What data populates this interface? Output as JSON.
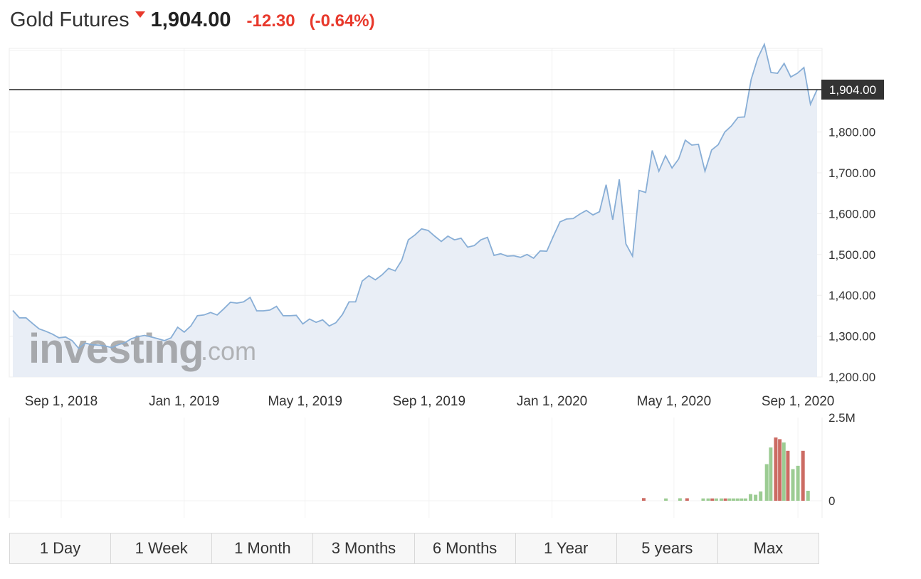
{
  "header": {
    "title": "Gold Futures",
    "price": "1,904.00",
    "change": "-12.30",
    "change_pct": "(-0.64%)",
    "direction_icon": "down-triangle-icon"
  },
  "watermark": {
    "brand": "investing",
    "suffix": ".com"
  },
  "ranges": [
    "1 Day",
    "1 Week",
    "1 Month",
    "3 Months",
    "6 Months",
    "1 Year",
    "5 years",
    "Max"
  ],
  "colors": {
    "line": "#88aed6",
    "area": "#e9eef6",
    "down": "#e8392c",
    "vol_up": "#9ccc93",
    "vol_down": "#cc6b63",
    "last_price_label_bg": "#333333"
  },
  "chart_data": {
    "type": "area",
    "title": "",
    "xlabel": "",
    "ylabel": "",
    "x_start": "2018-07-15",
    "x_end": "2020-09-20",
    "x_ticks": [
      "Sep 1, 2018",
      "Jan 1, 2019",
      "May 1, 2019",
      "Sep 1, 2019",
      "Jan 1, 2020",
      "May 1, 2020",
      "Sep 1, 2020"
    ],
    "ylim": [
      1200,
      2005
    ],
    "y_ticks": [
      "1,200.00",
      "1,300.00",
      "1,400.00",
      "1,500.00",
      "1,600.00",
      "1,700.00",
      "1,800.00"
    ],
    "last_price": 1904.0,
    "last_price_label": "1,904.00",
    "price": [
      1363,
      1345,
      1345,
      1331,
      1318,
      1312,
      1305,
      1296,
      1298,
      1289,
      1270,
      1283,
      1279,
      1278,
      1276,
      1272,
      1279,
      1284,
      1294,
      1299,
      1302,
      1298,
      1294,
      1289,
      1296,
      1322,
      1310,
      1325,
      1350,
      1352,
      1358,
      1352,
      1367,
      1383,
      1381,
      1384,
      1395,
      1362,
      1362,
      1364,
      1373,
      1350,
      1350,
      1351,
      1330,
      1342,
      1334,
      1340,
      1325,
      1333,
      1353,
      1384,
      1384,
      1435,
      1448,
      1438,
      1450,
      1466,
      1460,
      1486,
      1536,
      1548,
      1563,
      1559,
      1545,
      1532,
      1545,
      1536,
      1540,
      1518,
      1522,
      1536,
      1542,
      1498,
      1502,
      1496,
      1497,
      1493,
      1500,
      1491,
      1509,
      1508,
      1545,
      1580,
      1587,
      1588,
      1599,
      1608,
      1597,
      1605,
      1671,
      1585,
      1684,
      1526,
      1496,
      1657,
      1652,
      1755,
      1704,
      1742,
      1712,
      1734,
      1780,
      1768,
      1770,
      1704,
      1756,
      1769,
      1800,
      1815,
      1836,
      1837,
      1929,
      1981,
      2015,
      1946,
      1944,
      1968,
      1935,
      1944,
      1958,
      1868,
      1904
    ],
    "volume_axis": [
      "0",
      "2.5M"
    ],
    "volume_max": 2500000,
    "volume": [
      {
        "x": "2020-04-01",
        "value": 80000,
        "dir": "down"
      },
      {
        "x": "2020-04-23",
        "value": 70000,
        "dir": "up"
      },
      {
        "x": "2020-05-07",
        "value": 75000,
        "dir": "up"
      },
      {
        "x": "2020-05-14",
        "value": 75000,
        "dir": "down"
      },
      {
        "x": "2020-05-30",
        "value": 70000,
        "dir": "up"
      },
      {
        "x": "2020-06-04",
        "value": 70000,
        "dir": "up"
      },
      {
        "x": "2020-06-08",
        "value": 70000,
        "dir": "down"
      },
      {
        "x": "2020-06-12",
        "value": 70000,
        "dir": "up"
      },
      {
        "x": "2020-06-17",
        "value": 70000,
        "dir": "up"
      },
      {
        "x": "2020-06-21",
        "value": 70000,
        "dir": "down"
      },
      {
        "x": "2020-06-25",
        "value": 70000,
        "dir": "up"
      },
      {
        "x": "2020-06-29",
        "value": 70000,
        "dir": "up"
      },
      {
        "x": "2020-07-03",
        "value": 70000,
        "dir": "up"
      },
      {
        "x": "2020-07-07",
        "value": 70000,
        "dir": "up"
      },
      {
        "x": "2020-07-11",
        "value": 70000,
        "dir": "up"
      },
      {
        "x": "2020-07-16",
        "value": 200000,
        "dir": "up"
      },
      {
        "x": "2020-07-21",
        "value": 180000,
        "dir": "up"
      },
      {
        "x": "2020-07-26",
        "value": 280000,
        "dir": "up"
      },
      {
        "x": "2020-08-01",
        "value": 1100000,
        "dir": "up"
      },
      {
        "x": "2020-08-05",
        "value": 1600000,
        "dir": "up"
      },
      {
        "x": "2020-08-10",
        "value": 1900000,
        "dir": "down"
      },
      {
        "x": "2020-08-14",
        "value": 1850000,
        "dir": "down"
      },
      {
        "x": "2020-08-18",
        "value": 1750000,
        "dir": "up"
      },
      {
        "x": "2020-08-22",
        "value": 1500000,
        "dir": "down"
      },
      {
        "x": "2020-08-27",
        "value": 950000,
        "dir": "up"
      },
      {
        "x": "2020-09-01",
        "value": 1050000,
        "dir": "up"
      },
      {
        "x": "2020-09-06",
        "value": 1500000,
        "dir": "down"
      },
      {
        "x": "2020-09-11",
        "value": 300000,
        "dir": "up"
      }
    ]
  }
}
